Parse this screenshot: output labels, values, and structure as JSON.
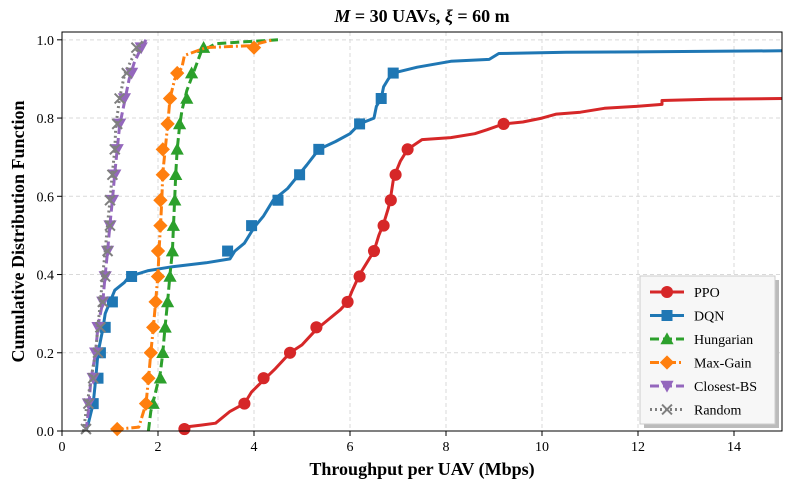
{
  "chart_data": {
    "type": "line",
    "title": "M = 30 UAVs, ξ = 60 m",
    "title_parts": [
      "M",
      " = 30 UAVs, ",
      "ξ",
      " = 60 m"
    ],
    "xlabel": "Throughput per UAV (Mbps)",
    "ylabel": "Cumulative Distribution Function",
    "xlim": [
      0,
      15
    ],
    "ylim": [
      0,
      1.02
    ],
    "xticks": [
      0,
      2,
      4,
      6,
      8,
      10,
      12,
      14
    ],
    "yticks": [
      0.0,
      0.2,
      0.4,
      0.6,
      0.8,
      1.0
    ],
    "xtick_labels": [
      "0",
      "2",
      "4",
      "6",
      "8",
      "10",
      "12",
      "14"
    ],
    "ytick_labels": [
      "0.0",
      "0.2",
      "0.4",
      "0.6",
      "0.8",
      "1.0"
    ],
    "grid": true,
    "legend_position": "bottom-right",
    "series": [
      {
        "name": "PPO",
        "color": "#d62728",
        "dash": "solid",
        "marker": "circle",
        "points": [
          [
            2.55,
            0.0
          ],
          [
            2.55,
            0.01
          ],
          [
            2.9,
            0.015
          ],
          [
            3.2,
            0.02
          ],
          [
            3.5,
            0.05
          ],
          [
            3.8,
            0.07
          ],
          [
            3.95,
            0.1
          ],
          [
            4.2,
            0.13
          ],
          [
            4.45,
            0.16
          ],
          [
            4.6,
            0.18
          ],
          [
            4.75,
            0.2
          ],
          [
            5.0,
            0.22
          ],
          [
            5.3,
            0.26
          ],
          [
            5.5,
            0.28
          ],
          [
            5.8,
            0.31
          ],
          [
            5.95,
            0.33
          ],
          [
            6.05,
            0.36
          ],
          [
            6.2,
            0.4
          ],
          [
            6.35,
            0.43
          ],
          [
            6.5,
            0.46
          ],
          [
            6.6,
            0.5
          ],
          [
            6.7,
            0.53
          ],
          [
            6.8,
            0.57
          ],
          [
            6.85,
            0.6
          ],
          [
            6.9,
            0.64
          ],
          [
            6.95,
            0.66
          ],
          [
            7.05,
            0.69
          ],
          [
            7.2,
            0.72
          ],
          [
            7.5,
            0.745
          ],
          [
            8.1,
            0.75
          ],
          [
            8.6,
            0.76
          ],
          [
            8.85,
            0.77
          ],
          [
            9.2,
            0.785
          ],
          [
            9.6,
            0.79
          ],
          [
            10.0,
            0.8
          ],
          [
            10.3,
            0.81
          ],
          [
            10.8,
            0.815
          ],
          [
            11.3,
            0.825
          ],
          [
            12.0,
            0.83
          ],
          [
            12.5,
            0.835
          ],
          [
            12.5,
            0.845
          ],
          [
            13.5,
            0.848
          ],
          [
            15.0,
            0.85
          ]
        ],
        "markers": [
          [
            2.55,
            0.005
          ],
          [
            3.8,
            0.07
          ],
          [
            4.2,
            0.135
          ],
          [
            4.75,
            0.2
          ],
          [
            5.3,
            0.265
          ],
          [
            5.95,
            0.33
          ],
          [
            6.2,
            0.395
          ],
          [
            6.5,
            0.46
          ],
          [
            6.7,
            0.525
          ],
          [
            6.85,
            0.59
          ],
          [
            6.95,
            0.655
          ],
          [
            7.2,
            0.72
          ],
          [
            9.2,
            0.785
          ]
        ]
      },
      {
        "name": "DQN",
        "color": "#1f77b4",
        "dash": "solid",
        "marker": "square",
        "points": [
          [
            0.5,
            0.0
          ],
          [
            0.55,
            0.02
          ],
          [
            0.65,
            0.07
          ],
          [
            0.7,
            0.13
          ],
          [
            0.75,
            0.2
          ],
          [
            0.85,
            0.26
          ],
          [
            0.9,
            0.3
          ],
          [
            1.0,
            0.33
          ],
          [
            1.1,
            0.36
          ],
          [
            1.3,
            0.38
          ],
          [
            1.4,
            0.395
          ],
          [
            1.8,
            0.41
          ],
          [
            2.3,
            0.42
          ],
          [
            3.0,
            0.43
          ],
          [
            3.5,
            0.44
          ],
          [
            3.6,
            0.46
          ],
          [
            3.8,
            0.48
          ],
          [
            4.0,
            0.52
          ],
          [
            4.2,
            0.55
          ],
          [
            4.4,
            0.59
          ],
          [
            4.7,
            0.62
          ],
          [
            4.9,
            0.65
          ],
          [
            5.1,
            0.68
          ],
          [
            5.35,
            0.72
          ],
          [
            5.7,
            0.74
          ],
          [
            6.0,
            0.76
          ],
          [
            6.2,
            0.785
          ],
          [
            6.5,
            0.8
          ],
          [
            6.55,
            0.83
          ],
          [
            6.65,
            0.85
          ],
          [
            6.7,
            0.88
          ],
          [
            6.8,
            0.9
          ],
          [
            6.9,
            0.915
          ],
          [
            7.4,
            0.93
          ],
          [
            8.1,
            0.945
          ],
          [
            8.9,
            0.95
          ],
          [
            9.1,
            0.965
          ],
          [
            10.5,
            0.968
          ],
          [
            15.0,
            0.972
          ]
        ],
        "markers": [
          [
            0.65,
            0.07
          ],
          [
            0.75,
            0.135
          ],
          [
            0.8,
            0.2
          ],
          [
            0.9,
            0.265
          ],
          [
            1.05,
            0.33
          ],
          [
            1.45,
            0.395
          ],
          [
            3.45,
            0.46
          ],
          [
            3.95,
            0.525
          ],
          [
            4.5,
            0.59
          ],
          [
            4.95,
            0.655
          ],
          [
            5.35,
            0.72
          ],
          [
            6.2,
            0.785
          ],
          [
            6.65,
            0.85
          ],
          [
            6.9,
            0.915
          ]
        ]
      },
      {
        "name": "Hungarian",
        "color": "#2ca02c",
        "dash": "dash",
        "marker": "triangle-up",
        "points": [
          [
            1.8,
            0.0
          ],
          [
            1.85,
            0.05
          ],
          [
            1.95,
            0.1
          ],
          [
            2.05,
            0.15
          ],
          [
            2.1,
            0.2
          ],
          [
            2.15,
            0.27
          ],
          [
            2.2,
            0.33
          ],
          [
            2.25,
            0.4
          ],
          [
            2.3,
            0.46
          ],
          [
            2.32,
            0.52
          ],
          [
            2.35,
            0.6
          ],
          [
            2.37,
            0.66
          ],
          [
            2.4,
            0.72
          ],
          [
            2.45,
            0.78
          ],
          [
            2.5,
            0.82
          ],
          [
            2.6,
            0.87
          ],
          [
            2.75,
            0.92
          ],
          [
            2.9,
            0.97
          ],
          [
            3.2,
            0.99
          ],
          [
            3.8,
            0.995
          ],
          [
            4.5,
            1.0
          ]
        ],
        "markers": [
          [
            1.9,
            0.07
          ],
          [
            2.05,
            0.135
          ],
          [
            2.1,
            0.2
          ],
          [
            2.15,
            0.265
          ],
          [
            2.2,
            0.33
          ],
          [
            2.25,
            0.395
          ],
          [
            2.3,
            0.46
          ],
          [
            2.32,
            0.525
          ],
          [
            2.35,
            0.59
          ],
          [
            2.37,
            0.655
          ],
          [
            2.4,
            0.72
          ],
          [
            2.45,
            0.785
          ],
          [
            2.6,
            0.85
          ],
          [
            2.7,
            0.915
          ],
          [
            2.95,
            0.98
          ]
        ]
      },
      {
        "name": "Max-Gain",
        "color": "#ff7f0e",
        "dash": "dashdot",
        "marker": "diamond",
        "points": [
          [
            1.1,
            0.0
          ],
          [
            1.2,
            0.005
          ],
          [
            1.6,
            0.01
          ],
          [
            1.75,
            0.07
          ],
          [
            1.8,
            0.13
          ],
          [
            1.85,
            0.2
          ],
          [
            1.9,
            0.26
          ],
          [
            1.95,
            0.33
          ],
          [
            2.0,
            0.4
          ],
          [
            2.02,
            0.46
          ],
          [
            2.05,
            0.52
          ],
          [
            2.08,
            0.59
          ],
          [
            2.1,
            0.66
          ],
          [
            2.15,
            0.72
          ],
          [
            2.2,
            0.78
          ],
          [
            2.25,
            0.85
          ],
          [
            2.35,
            0.9
          ],
          [
            2.5,
            0.93
          ],
          [
            2.55,
            0.96
          ],
          [
            3.0,
            0.98
          ],
          [
            3.9,
            0.985
          ],
          [
            4.4,
            1.0
          ]
        ],
        "markers": [
          [
            1.15,
            0.005
          ],
          [
            1.75,
            0.07
          ],
          [
            1.8,
            0.135
          ],
          [
            1.85,
            0.2
          ],
          [
            1.9,
            0.265
          ],
          [
            1.95,
            0.33
          ],
          [
            2.0,
            0.395
          ],
          [
            2.0,
            0.46
          ],
          [
            2.05,
            0.525
          ],
          [
            2.05,
            0.59
          ],
          [
            2.1,
            0.655
          ],
          [
            2.1,
            0.72
          ],
          [
            2.2,
            0.785
          ],
          [
            2.25,
            0.85
          ],
          [
            2.4,
            0.915
          ],
          [
            4.0,
            0.98
          ]
        ]
      },
      {
        "name": "Closest-BS",
        "color": "#9467bd",
        "dash": "dash",
        "marker": "triangle-down",
        "points": [
          [
            0.5,
            0.0
          ],
          [
            0.55,
            0.05
          ],
          [
            0.6,
            0.13
          ],
          [
            0.7,
            0.2
          ],
          [
            0.75,
            0.27
          ],
          [
            0.85,
            0.33
          ],
          [
            0.9,
            0.4
          ],
          [
            0.95,
            0.46
          ],
          [
            1.0,
            0.53
          ],
          [
            1.05,
            0.59
          ],
          [
            1.1,
            0.66
          ],
          [
            1.15,
            0.72
          ],
          [
            1.2,
            0.78
          ],
          [
            1.3,
            0.84
          ],
          [
            1.4,
            0.9
          ],
          [
            1.5,
            0.94
          ],
          [
            1.65,
            0.98
          ],
          [
            1.75,
            1.0
          ]
        ],
        "markers": [
          [
            0.55,
            0.07
          ],
          [
            0.65,
            0.135
          ],
          [
            0.7,
            0.2
          ],
          [
            0.75,
            0.265
          ],
          [
            0.85,
            0.33
          ],
          [
            0.9,
            0.395
          ],
          [
            0.95,
            0.46
          ],
          [
            1.0,
            0.525
          ],
          [
            1.05,
            0.59
          ],
          [
            1.1,
            0.655
          ],
          [
            1.15,
            0.72
          ],
          [
            1.2,
            0.785
          ],
          [
            1.3,
            0.85
          ],
          [
            1.45,
            0.915
          ],
          [
            1.65,
            0.98
          ]
        ]
      },
      {
        "name": "Random",
        "color": "#7f7f7f",
        "dash": "dot",
        "marker": "x",
        "points": [
          [
            0.45,
            0.0
          ],
          [
            0.5,
            0.05
          ],
          [
            0.6,
            0.13
          ],
          [
            0.7,
            0.2
          ],
          [
            0.75,
            0.27
          ],
          [
            0.8,
            0.33
          ],
          [
            0.85,
            0.4
          ],
          [
            0.9,
            0.46
          ],
          [
            0.95,
            0.53
          ],
          [
            1.0,
            0.59
          ],
          [
            1.05,
            0.66
          ],
          [
            1.1,
            0.72
          ],
          [
            1.12,
            0.78
          ],
          [
            1.2,
            0.85
          ],
          [
            1.3,
            0.91
          ],
          [
            1.45,
            0.95
          ],
          [
            1.6,
            0.98
          ],
          [
            1.7,
            1.0
          ]
        ],
        "markers": [
          [
            0.5,
            0.005
          ],
          [
            0.55,
            0.07
          ],
          [
            0.65,
            0.135
          ],
          [
            0.75,
            0.2
          ],
          [
            0.8,
            0.265
          ],
          [
            0.85,
            0.33
          ],
          [
            0.9,
            0.395
          ],
          [
            0.95,
            0.46
          ],
          [
            1.0,
            0.525
          ],
          [
            1.0,
            0.59
          ],
          [
            1.05,
            0.655
          ],
          [
            1.1,
            0.72
          ],
          [
            1.15,
            0.785
          ],
          [
            1.2,
            0.85
          ],
          [
            1.35,
            0.915
          ],
          [
            1.55,
            0.98
          ]
        ]
      }
    ]
  }
}
